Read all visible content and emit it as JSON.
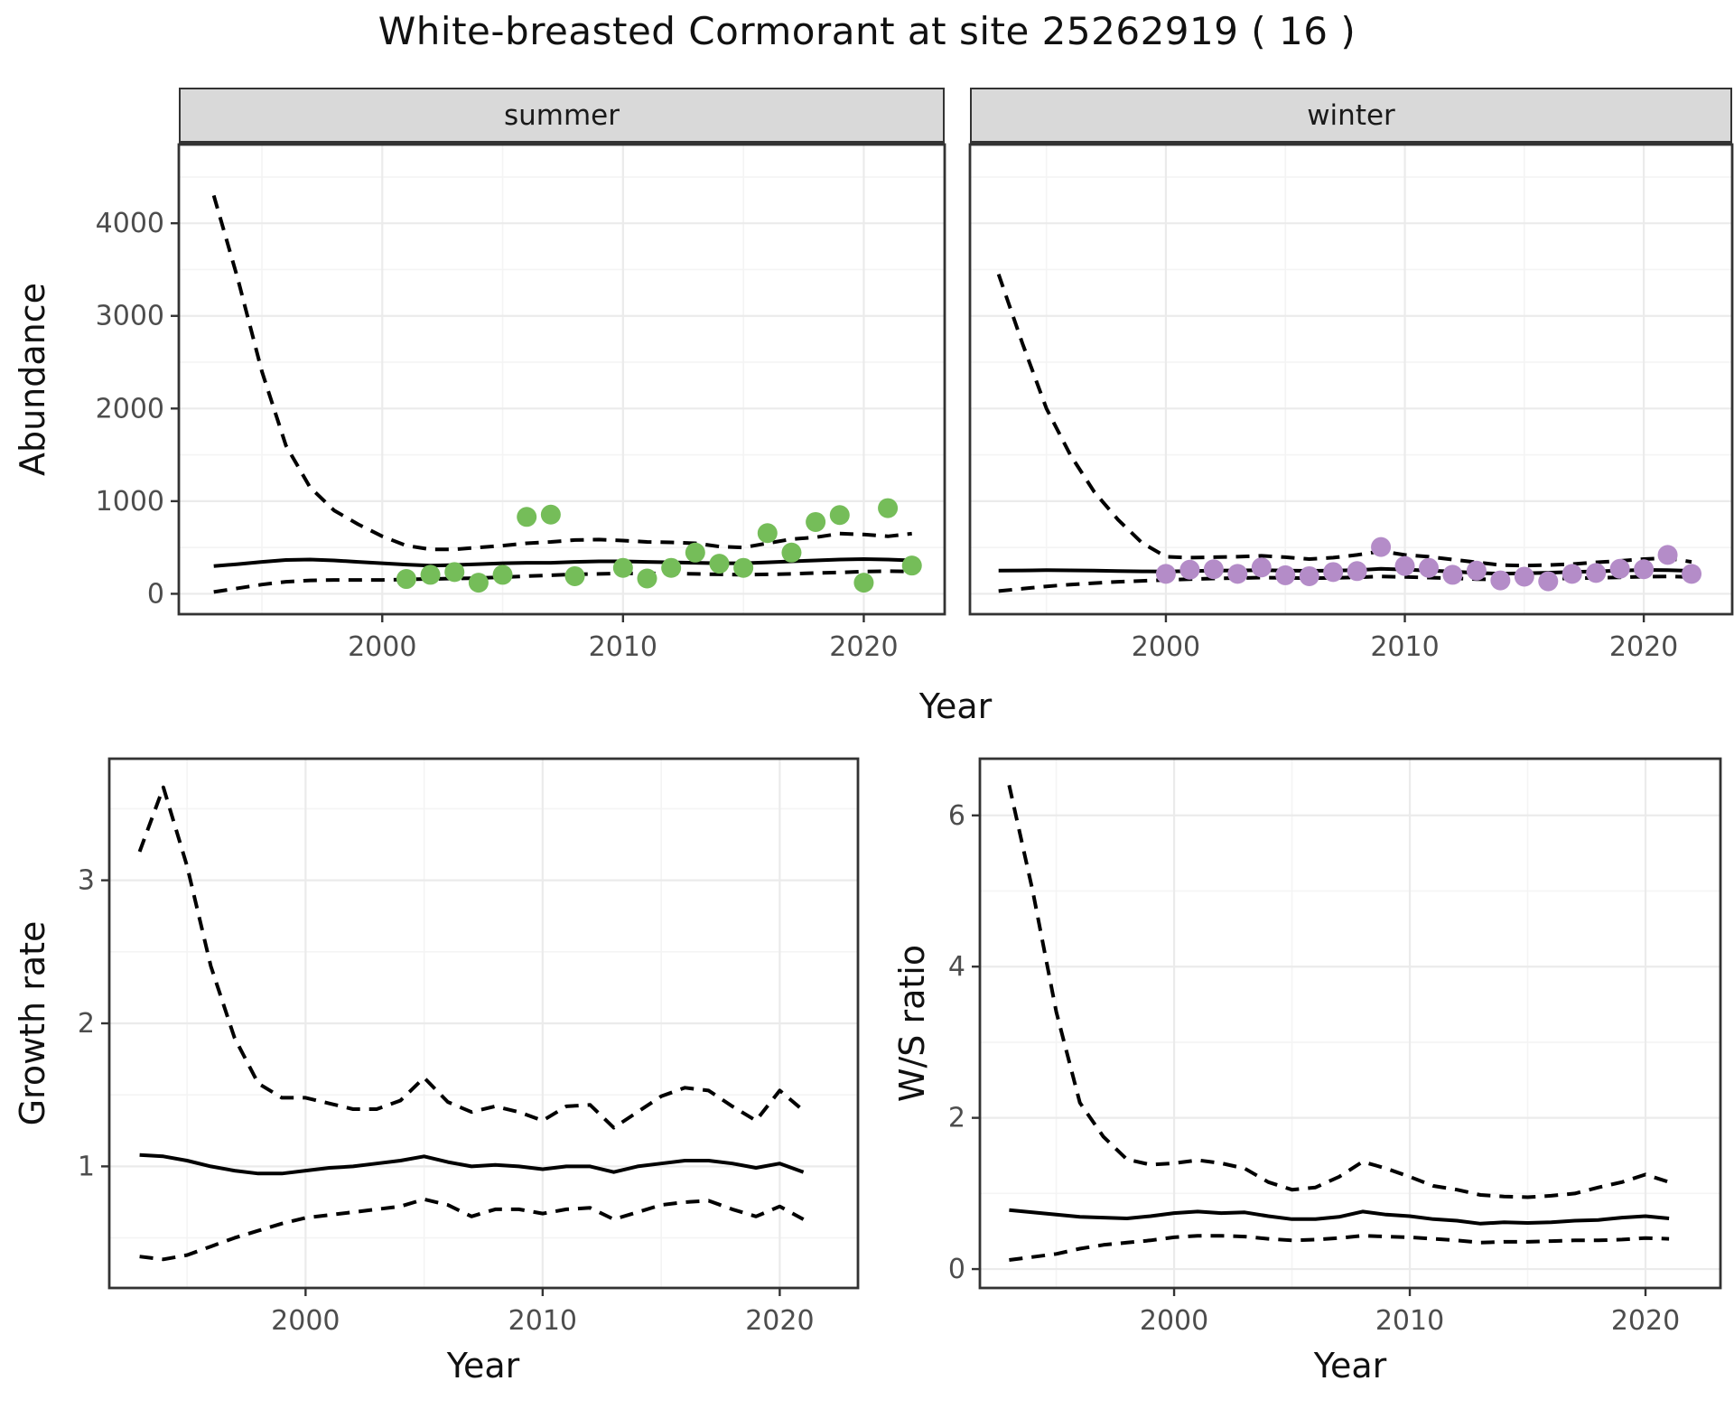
{
  "title": "White-breasted Cormorant at site 25262919 ( 16 )",
  "facets": [
    {
      "label": "summer"
    },
    {
      "label": "winter"
    }
  ],
  "axis_labels": {
    "abundance": "Abundance",
    "year_top": "Year",
    "growth_rate": "Growth rate",
    "year_growth": "Year",
    "ws_ratio": "W/S ratio",
    "year_ws": "Year"
  },
  "colors": {
    "background": "#FFFFFF",
    "panel_border": "#333333",
    "grid_major": "#EBEBEB",
    "grid_minor": "#F4F4F4",
    "strip_fill": "#D9D9D9",
    "axis_text": "#4D4D4D",
    "line": "#000000",
    "summer_point": "#75BD59",
    "winter_point": "#B48CC8"
  },
  "chart_data": [
    {
      "id": "abundance_summer",
      "type": "line",
      "facet": "summer",
      "xlabel": "Year",
      "ylabel": "Abundance",
      "xlim": [
        1991.55,
        2023.36
      ],
      "ylim": [
        -220,
        4850
      ],
      "xticks": [
        2000,
        2010,
        2020
      ],
      "yticks": [
        0,
        1000,
        2000,
        3000,
        4000
      ],
      "x_minor": [
        1995,
        2005,
        2015
      ],
      "y_minor": [
        500,
        1500,
        2500,
        3500,
        4500
      ],
      "show_y_tick_labels": true,
      "show_x_tick_labels": true,
      "x": [
        1993,
        1994,
        1995,
        1996,
        1997,
        1998,
        1999,
        2000,
        2001,
        2002,
        2003,
        2004,
        2005,
        2006,
        2007,
        2008,
        2009,
        2010,
        2011,
        2012,
        2013,
        2014,
        2015,
        2016,
        2017,
        2018,
        2019,
        2020,
        2021,
        2022
      ],
      "series": [
        {
          "name": "upper_ci",
          "style": "dashed",
          "color": "#000000",
          "values": [
            4300,
            3400,
            2400,
            1600,
            1150,
            900,
            750,
            620,
            520,
            480,
            480,
            500,
            520,
            545,
            560,
            580,
            585,
            575,
            560,
            555,
            545,
            510,
            500,
            545,
            590,
            610,
            650,
            640,
            620,
            650
          ]
        },
        {
          "name": "mean",
          "style": "solid",
          "color": "#000000",
          "values": [
            300,
            320,
            345,
            365,
            370,
            360,
            345,
            330,
            315,
            305,
            310,
            320,
            330,
            335,
            335,
            345,
            350,
            350,
            345,
            340,
            335,
            330,
            330,
            340,
            350,
            360,
            370,
            375,
            370,
            360
          ]
        },
        {
          "name": "lower_ci",
          "style": "dashed",
          "color": "#000000",
          "values": [
            20,
            60,
            100,
            130,
            145,
            150,
            150,
            150,
            155,
            160,
            165,
            170,
            180,
            190,
            200,
            210,
            215,
            220,
            220,
            220,
            215,
            210,
            205,
            210,
            215,
            225,
            230,
            240,
            245,
            240
          ]
        },
        {
          "name": "observed_counts",
          "style": "points",
          "color": "#75BD59",
          "x": [
            2001,
            2002,
            2003,
            2004,
            2005,
            2006,
            2007,
            2008,
            2010,
            2011,
            2012,
            2013,
            2014,
            2015,
            2016,
            2017,
            2018,
            2019,
            2020,
            2021,
            2022
          ],
          "values": [
            160,
            205,
            235,
            120,
            205,
            830,
            855,
            190,
            280,
            165,
            280,
            445,
            325,
            280,
            655,
            445,
            775,
            850,
            120,
            925,
            305
          ]
        }
      ]
    },
    {
      "id": "abundance_winter",
      "type": "line",
      "facet": "winter",
      "xlabel": "Year",
      "ylabel": "Abundance",
      "xlim": [
        1991.8,
        2023.7
      ],
      "ylim": [
        -220,
        4850
      ],
      "xticks": [
        2000,
        2010,
        2020
      ],
      "yticks": [
        0,
        1000,
        2000,
        3000,
        4000
      ],
      "x_minor": [
        1995,
        2005,
        2015
      ],
      "y_minor": [
        500,
        1500,
        2500,
        3500,
        4500
      ],
      "show_y_tick_labels": false,
      "show_x_tick_labels": true,
      "x": [
        1993,
        1994,
        1995,
        1996,
        1997,
        1998,
        1999,
        2000,
        2001,
        2002,
        2003,
        2004,
        2005,
        2006,
        2007,
        2008,
        2009,
        2010,
        2011,
        2012,
        2013,
        2014,
        2015,
        2016,
        2017,
        2018,
        2019,
        2020,
        2021,
        2022
      ],
      "series": [
        {
          "name": "upper_ci",
          "style": "dashed",
          "color": "#000000",
          "values": [
            3450,
            2700,
            2000,
            1500,
            1100,
            800,
            550,
            400,
            390,
            395,
            400,
            410,
            395,
            375,
            390,
            420,
            460,
            420,
            400,
            370,
            340,
            310,
            305,
            310,
            320,
            340,
            355,
            375,
            385,
            345
          ]
        },
        {
          "name": "mean",
          "style": "solid",
          "color": "#000000",
          "values": [
            250,
            252,
            255,
            253,
            250,
            245,
            242,
            240,
            245,
            250,
            252,
            255,
            250,
            248,
            250,
            255,
            270,
            262,
            250,
            240,
            225,
            218,
            222,
            228,
            235,
            242,
            250,
            258,
            255,
            248
          ]
        },
        {
          "name": "lower_ci",
          "style": "dashed",
          "color": "#000000",
          "values": [
            30,
            55,
            80,
            100,
            115,
            130,
            140,
            150,
            158,
            165,
            170,
            175,
            172,
            168,
            172,
            178,
            188,
            182,
            175,
            168,
            158,
            152,
            155,
            160,
            168,
            172,
            178,
            185,
            188,
            182
          ]
        },
        {
          "name": "observed_counts",
          "style": "points",
          "color": "#B48CC8",
          "x": [
            2000,
            2001,
            2002,
            2003,
            2004,
            2005,
            2006,
            2007,
            2008,
            2009,
            2010,
            2011,
            2012,
            2013,
            2014,
            2015,
            2016,
            2017,
            2018,
            2019,
            2020,
            2021,
            2022
          ],
          "values": [
            215,
            260,
            265,
            215,
            285,
            200,
            190,
            235,
            245,
            505,
            300,
            280,
            205,
            250,
            145,
            185,
            135,
            215,
            225,
            270,
            265,
            420,
            215
          ]
        }
      ]
    },
    {
      "id": "growth_rate",
      "type": "line",
      "facet": null,
      "xlabel": "Year",
      "ylabel": "Growth rate",
      "xlim": [
        1991.72,
        2023.3
      ],
      "ylim": [
        0.15,
        3.85
      ],
      "xticks": [
        2000,
        2010,
        2020
      ],
      "yticks": [
        1,
        2,
        3
      ],
      "x_minor": [
        1995,
        2005,
        2015
      ],
      "y_minor": [
        0.5,
        1.5,
        2.5,
        3.5
      ],
      "show_y_tick_labels": true,
      "show_x_tick_labels": true,
      "x": [
        1993,
        1994,
        1995,
        1996,
        1997,
        1998,
        1999,
        2000,
        2001,
        2002,
        2003,
        2004,
        2005,
        2006,
        2007,
        2008,
        2009,
        2010,
        2011,
        2012,
        2013,
        2014,
        2015,
        2016,
        2017,
        2018,
        2019,
        2020,
        2021
      ],
      "series": [
        {
          "name": "upper_ci",
          "style": "dashed",
          "color": "#000000",
          "values": [
            3.2,
            3.65,
            3.1,
            2.4,
            1.9,
            1.58,
            1.48,
            1.48,
            1.44,
            1.4,
            1.4,
            1.46,
            1.62,
            1.45,
            1.38,
            1.42,
            1.38,
            1.32,
            1.42,
            1.43,
            1.27,
            1.38,
            1.49,
            1.55,
            1.53,
            1.42,
            1.32,
            1.53,
            1.39
          ]
        },
        {
          "name": "mean",
          "style": "solid",
          "color": "#000000",
          "values": [
            1.08,
            1.07,
            1.04,
            1.0,
            0.97,
            0.95,
            0.95,
            0.97,
            0.99,
            1.0,
            1.02,
            1.04,
            1.07,
            1.03,
            1.0,
            1.01,
            1.0,
            0.98,
            1.0,
            1.0,
            0.96,
            1.0,
            1.02,
            1.04,
            1.04,
            1.02,
            0.99,
            1.02,
            0.96
          ]
        },
        {
          "name": "lower_ci",
          "style": "dashed",
          "color": "#000000",
          "values": [
            0.37,
            0.35,
            0.38,
            0.44,
            0.5,
            0.55,
            0.6,
            0.64,
            0.66,
            0.68,
            0.7,
            0.72,
            0.77,
            0.73,
            0.65,
            0.7,
            0.7,
            0.67,
            0.7,
            0.71,
            0.63,
            0.68,
            0.73,
            0.75,
            0.76,
            0.7,
            0.65,
            0.72,
            0.63
          ]
        }
      ]
    },
    {
      "id": "ws_ratio",
      "type": "line",
      "facet": null,
      "xlabel": "Year",
      "ylabel": "W/S ratio",
      "xlim": [
        1991.76,
        2023.18
      ],
      "ylim": [
        -0.25,
        6.75
      ],
      "xticks": [
        2000,
        2010,
        2020
      ],
      "yticks": [
        0,
        2,
        4,
        6
      ],
      "x_minor": [
        1995,
        2005,
        2015
      ],
      "y_minor": [
        1,
        3,
        5
      ],
      "show_y_tick_labels": true,
      "show_x_tick_labels": true,
      "x": [
        1993,
        1994,
        1995,
        1996,
        1997,
        1998,
        1999,
        2000,
        2001,
        2002,
        2003,
        2004,
        2005,
        2006,
        2007,
        2008,
        2009,
        2010,
        2011,
        2012,
        2013,
        2014,
        2015,
        2016,
        2017,
        2018,
        2019,
        2020,
        2021
      ],
      "series": [
        {
          "name": "upper_ci",
          "style": "dashed",
          "color": "#000000",
          "values": [
            6.4,
            5.0,
            3.4,
            2.2,
            1.75,
            1.45,
            1.38,
            1.4,
            1.44,
            1.4,
            1.33,
            1.15,
            1.05,
            1.08,
            1.22,
            1.42,
            1.33,
            1.22,
            1.1,
            1.05,
            0.98,
            0.96,
            0.95,
            0.97,
            1.0,
            1.08,
            1.15,
            1.25,
            1.15
          ]
        },
        {
          "name": "mean",
          "style": "solid",
          "color": "#000000",
          "values": [
            0.78,
            0.75,
            0.72,
            0.69,
            0.68,
            0.67,
            0.7,
            0.74,
            0.76,
            0.74,
            0.75,
            0.7,
            0.66,
            0.66,
            0.69,
            0.76,
            0.72,
            0.7,
            0.66,
            0.64,
            0.6,
            0.62,
            0.61,
            0.62,
            0.64,
            0.65,
            0.68,
            0.7,
            0.67
          ]
        },
        {
          "name": "lower_ci",
          "style": "dashed",
          "color": "#000000",
          "values": [
            0.12,
            0.16,
            0.2,
            0.27,
            0.32,
            0.35,
            0.38,
            0.42,
            0.44,
            0.44,
            0.43,
            0.4,
            0.38,
            0.39,
            0.41,
            0.44,
            0.43,
            0.42,
            0.4,
            0.38,
            0.35,
            0.36,
            0.36,
            0.37,
            0.38,
            0.38,
            0.39,
            0.41,
            0.4
          ]
        }
      ]
    }
  ]
}
